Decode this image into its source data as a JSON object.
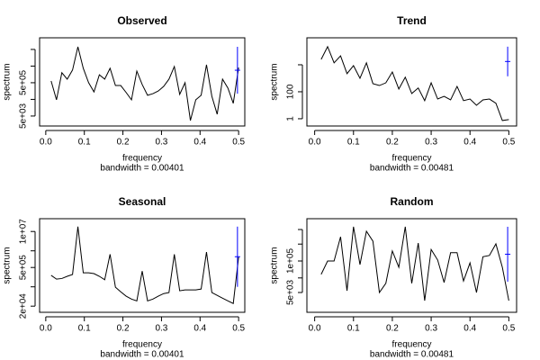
{
  "chart_data": [
    {
      "type": "line",
      "title": "Observed",
      "xlabel": "frequency",
      "subtitle": "bandwidth = 0.00401",
      "ylabel": "spectrum",
      "log_y": true,
      "color": "#000000",
      "x": [
        0.0139,
        0.0278,
        0.0417,
        0.0556,
        0.0694,
        0.0833,
        0.0972,
        0.1111,
        0.125,
        0.1389,
        0.1528,
        0.1667,
        0.1806,
        0.1944,
        0.2083,
        0.2222,
        0.2361,
        0.25,
        0.2639,
        0.2778,
        0.2917,
        0.3056,
        0.3194,
        0.3333,
        0.3472,
        0.3611,
        0.375,
        0.3889,
        0.4028,
        0.4167,
        0.4306,
        0.4444,
        0.4583,
        0.4722,
        0.4861,
        0.5
      ],
      "values": [
        640000.0,
        47000.0,
        2000000.0,
        820000.0,
        2900000.0,
        72000000.0,
        3700000.0,
        500000.0,
        140000.0,
        1500000.0,
        820000.0,
        3700000.0,
        340000.0,
        340000.0,
        130000.0,
        47000.0,
        2500000.0,
        390000.0,
        88000.0,
        110000.0,
        160000.0,
        300000.0,
        820000.0,
        4700000.0,
        100000.0,
        500000.0,
        2700.0,
        47000.0,
        88000.0,
        6000000.0,
        77000.0,
        6400.0,
        820000.0,
        240000.0,
        29000.0,
        4100000.0
      ],
      "ci": {
        "x": 0.497,
        "low": 110000.0,
        "high": 72000000.0,
        "color": "#0000ff"
      },
      "xlim": [
        -0.016,
        0.516
      ],
      "ylim": [
        1260,
        250000000.0
      ],
      "xticks": [
        {
          "value": 0,
          "label": "0.0"
        },
        0.1,
        0.2,
        0.3,
        0.4,
        0.5
      ],
      "yticks": [
        {
          "value": 5000,
          "label": "5e+03"
        },
        {
          "value": 500000,
          "label": "5e+05"
        }
      ],
      "yticks_minor": [
        50000,
        5000000,
        50000000
      ]
    },
    {
      "type": "line",
      "title": "Trend",
      "xlabel": "frequency",
      "subtitle": "bandwidth = 0.00481",
      "ylabel": "spectrum",
      "log_y": true,
      "color": "#000000",
      "x": [
        0.0167,
        0.0333,
        0.05,
        0.0667,
        0.0833,
        0.1,
        0.1167,
        0.1333,
        0.15,
        0.1667,
        0.1833,
        0.2,
        0.2167,
        0.2333,
        0.25,
        0.2667,
        0.2833,
        0.3,
        0.3167,
        0.3333,
        0.35,
        0.3667,
        0.3833,
        0.4,
        0.4167,
        0.4333,
        0.45,
        0.4667,
        0.4833,
        0.5
      ],
      "values": [
        25000.0,
        220000.0,
        14000.0,
        46000.0,
        2200.0,
        8600.0,
        1000.0,
        14000.0,
        400.0,
        290.0,
        460.0,
        2900.0,
        160.0,
        1200.0,
        74,
        190.0,
        22,
        460.0,
        29,
        46,
        25,
        250.0,
        22,
        29,
        10,
        25,
        29,
        14,
        0.74,
        0.86
      ],
      "ci": {
        "x": 0.497,
        "low": 1400.0,
        "high": 220000.0,
        "color": "#0000ff"
      },
      "xlim": [
        -0.02,
        0.52
      ],
      "ylim": [
        0.29,
        1000000
      ],
      "xticks": [
        {
          "value": 0,
          "label": "0.0"
        },
        0.1,
        0.2,
        0.3,
        0.4,
        0.5
      ],
      "yticks": [
        1,
        100
      ],
      "yticks_minor": [
        10000
      ]
    },
    {
      "type": "line",
      "title": "Seasonal",
      "xlabel": "frequency",
      "subtitle": "bandwidth = 0.00401",
      "ylabel": "spectrum",
      "log_y": true,
      "color": "#000000",
      "x": [
        0.0139,
        0.0278,
        0.0417,
        0.0556,
        0.0694,
        0.0833,
        0.0972,
        0.1111,
        0.125,
        0.1389,
        0.1528,
        0.1667,
        0.1806,
        0.1944,
        0.2083,
        0.2222,
        0.2361,
        0.25,
        0.2639,
        0.2778,
        0.2917,
        0.3056,
        0.3194,
        0.3333,
        0.3472,
        0.3611,
        0.375,
        0.3889,
        0.4028,
        0.4167,
        0.4306,
        0.4444,
        0.4583,
        0.4722,
        0.4861,
        0.5
      ],
      "values": [
        260000.0,
        190000.0,
        200000.0,
        240000.0,
        280000.0,
        15000000.0,
        320000.0,
        320000.0,
        300000.0,
        240000.0,
        180000.0,
        1500000.0,
        97000.0,
        66000.0,
        46000.0,
        36000.0,
        31000.0,
        370000.0,
        31000.0,
        36000.0,
        46000.0,
        57000.0,
        62000.0,
        1500000.0,
        72000.0,
        77000.0,
        77000.0,
        77000.0,
        83000.0,
        1800000.0,
        62000.0,
        49000.0,
        39000.0,
        31000.0,
        25000.0,
        1200000.0
      ],
      "ci": {
        "x": 0.497,
        "low": 100000.0,
        "high": 15000000.0,
        "color": "#0000ff"
      },
      "xlim": [
        -0.016,
        0.516
      ],
      "ylim": [
        12000,
        29000000.0
      ],
      "xticks": [
        {
          "value": 0,
          "label": "0.0"
        },
        0.1,
        0.2,
        0.3,
        0.4,
        0.5
      ],
      "yticks": [
        {
          "value": 20000,
          "label": "2e+04"
        },
        {
          "value": 500000,
          "label": "5e+05"
        },
        {
          "value": 10000000,
          "label": "1e+07"
        }
      ],
      "yticks_minor": [
        100000,
        2000000
      ]
    },
    {
      "type": "line",
      "title": "Random",
      "xlabel": "frequency",
      "subtitle": "bandwidth = 0.00481",
      "ylabel": "spectrum",
      "log_y": true,
      "color": "#000000",
      "x": [
        0.0167,
        0.0333,
        0.05,
        0.0667,
        0.0833,
        0.1,
        0.1167,
        0.1333,
        0.15,
        0.1667,
        0.1833,
        0.2,
        0.2167,
        0.2333,
        0.25,
        0.2667,
        0.2833,
        0.3,
        0.3167,
        0.3333,
        0.35,
        0.3667,
        0.3833,
        0.4,
        0.4167,
        0.4333,
        0.45,
        0.4667,
        0.4833,
        0.5
      ],
      "values": [
        28000.0,
        100000.0,
        100000.0,
        1000000.0,
        5900.0,
        2600000.0,
        71000.0,
        1700000.0,
        660000.0,
        5000.0,
        12000.0,
        260000.0,
        55000.0,
        2600000.0,
        12000.0,
        550000.0,
        2300.0,
        300000.0,
        110000.0,
        13000.0,
        220000.0,
        220000.0,
        15000.0,
        84000.0,
        5000.0,
        150000.0,
        170000.0,
        510000.0,
        55000.0,
        2300.0
      ],
      "ci": {
        "x": 0.497,
        "low": 14000.0,
        "high": 2600000.0,
        "color": "#0000ff"
      },
      "xlim": [
        -0.02,
        0.52
      ],
      "ylim": [
        760,
        5600000
      ],
      "xticks": [
        {
          "value": 0,
          "label": "0.0"
        },
        0.1,
        0.2,
        0.3,
        0.4,
        0.5
      ],
      "yticks": [
        {
          "value": 5000,
          "label": "5e+03"
        },
        {
          "value": 100000,
          "label": "1e+05"
        }
      ],
      "yticks_minor": [
        20000,
        500000,
        2000000
      ]
    }
  ]
}
